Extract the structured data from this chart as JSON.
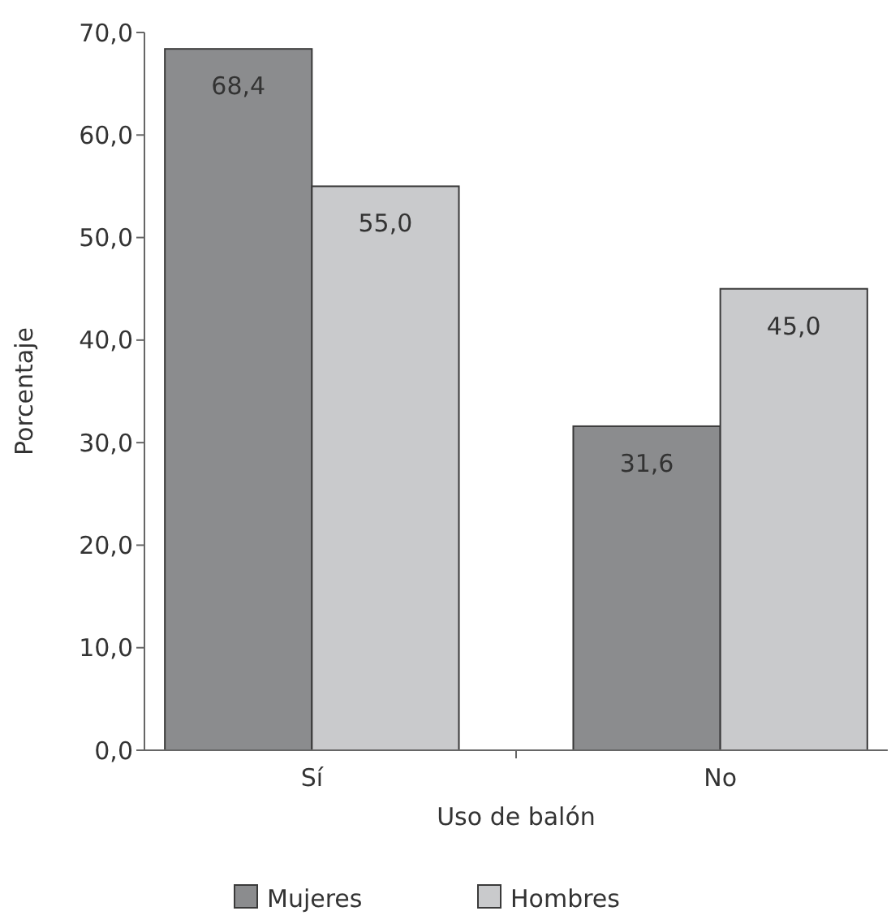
{
  "chart_data": {
    "type": "bar",
    "xlabel": "Uso de balón",
    "ylabel": "Porcentaje",
    "categories": [
      "Sí",
      "No"
    ],
    "series": [
      {
        "name": "Mujeres",
        "color": "#8b8c8e",
        "values": [
          68.4,
          31.6
        ],
        "value_labels": [
          "68,4",
          "31,6"
        ]
      },
      {
        "name": "Hombres",
        "color": "#c9cacc",
        "values": [
          55.0,
          45.0
        ],
        "value_labels": [
          "55,0",
          "45,0"
        ]
      }
    ],
    "ylim": [
      0,
      70
    ],
    "yticks": [
      {
        "value": 0,
        "label": "0,0"
      },
      {
        "value": 10,
        "label": "10,0"
      },
      {
        "value": 20,
        "label": "20,0"
      },
      {
        "value": 30,
        "label": "30,0"
      },
      {
        "value": 40,
        "label": "40,0"
      },
      {
        "value": 50,
        "label": "50,0"
      },
      {
        "value": 60,
        "label": "60,0"
      },
      {
        "value": 70,
        "label": "70,0"
      }
    ],
    "legend": "bottom",
    "grid": false
  }
}
